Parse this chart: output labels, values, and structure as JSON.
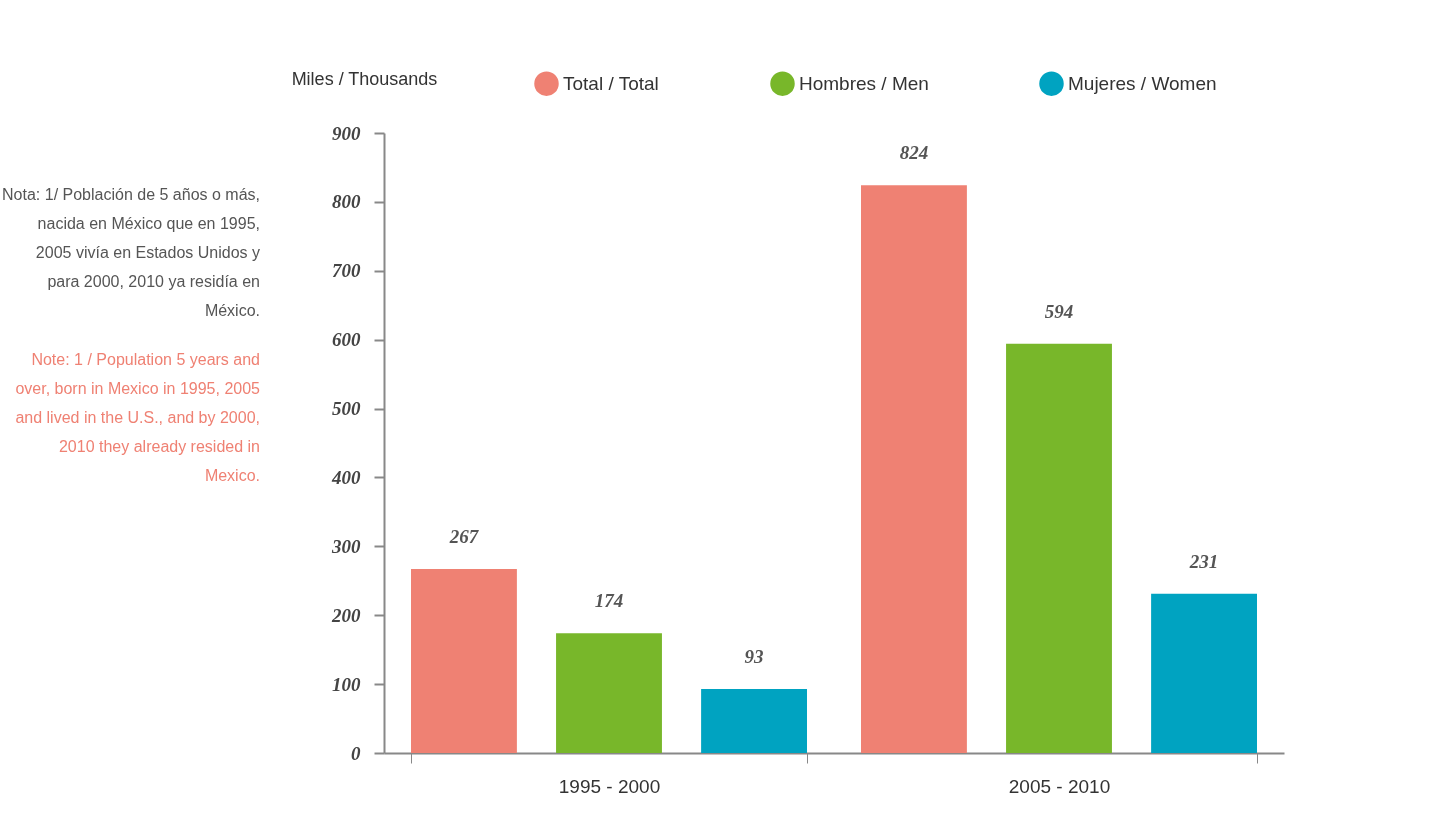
{
  "chart_data": {
    "type": "bar",
    "ylabel": "Miles / Thousands",
    "categories": [
      "1995 - 2000",
      "2005 - 2010"
    ],
    "series": [
      {
        "name": "Total / Total",
        "color": "#ef8173",
        "values": [
          267,
          824
        ]
      },
      {
        "name": "Hombres / Men",
        "color": "#78b72a",
        "values": [
          174,
          594
        ]
      },
      {
        "name": "Mujeres / Women",
        "color": "#00a3c1",
        "values": [
          93,
          231
        ]
      }
    ],
    "ylim": [
      0,
      900
    ],
    "yticks": [
      0,
      100,
      200,
      300,
      400,
      500,
      600,
      700,
      800,
      900
    ],
    "data_labels": true,
    "legend": "top",
    "annotations": [
      "Nota: 1/ Población de 5 años o más, nacida en México que en 1995, 2005 vivía en Estados Unidos y para 2000, 2010 ya residía en México.",
      "Note: 1 / Population 5 years and over, born in Mexico in 1995, 2005 and lived in the U.S., and by 2000, 2010 they already resided in Mexico."
    ]
  }
}
